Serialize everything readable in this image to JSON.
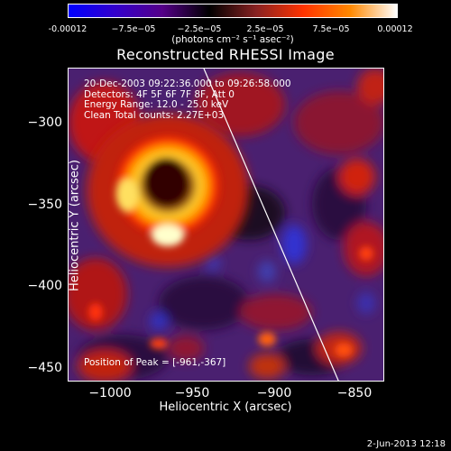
{
  "title": "Reconstructed RHESSI Image",
  "colorbar": {
    "ticks": [
      "-0.00012",
      "−7.5e−05",
      "−2.5e−05",
      "2.5e−05",
      "7.5e−05",
      "0.00012"
    ],
    "unit_label": "(photons cm⁻² s⁻¹ asec⁻²)",
    "colors": [
      "#0000ff",
      "#3300cc",
      "#550088",
      "#000000",
      "#882222",
      "#ff3300",
      "#ff8800",
      "#ffffff"
    ]
  },
  "info_lines": [
    "20-Dec-2003 09:22:36.000 to 09:26:58.000",
    "Detectors: 4F 5F 6F 7F 8F, Att 0",
    "Energy Range: 12.0 - 25.0 keV",
    "Clean     Total counts: 2.27E+03"
  ],
  "peak_label": "Position of Peak = [-961,-367]",
  "x_axis": {
    "label": "Heliocentric X (arcsec)",
    "ticks": [
      "−1000",
      "−950",
      "−900",
      "−850"
    ],
    "range": [
      -1020,
      -830
    ]
  },
  "y_axis": {
    "label": "Heliocentric Y (arcsec)",
    "ticks": [
      "−300",
      "−350",
      "−400",
      "−450"
    ],
    "range": [
      -460,
      -270
    ]
  },
  "footer_date": "2-Jun-2013 12:18"
}
